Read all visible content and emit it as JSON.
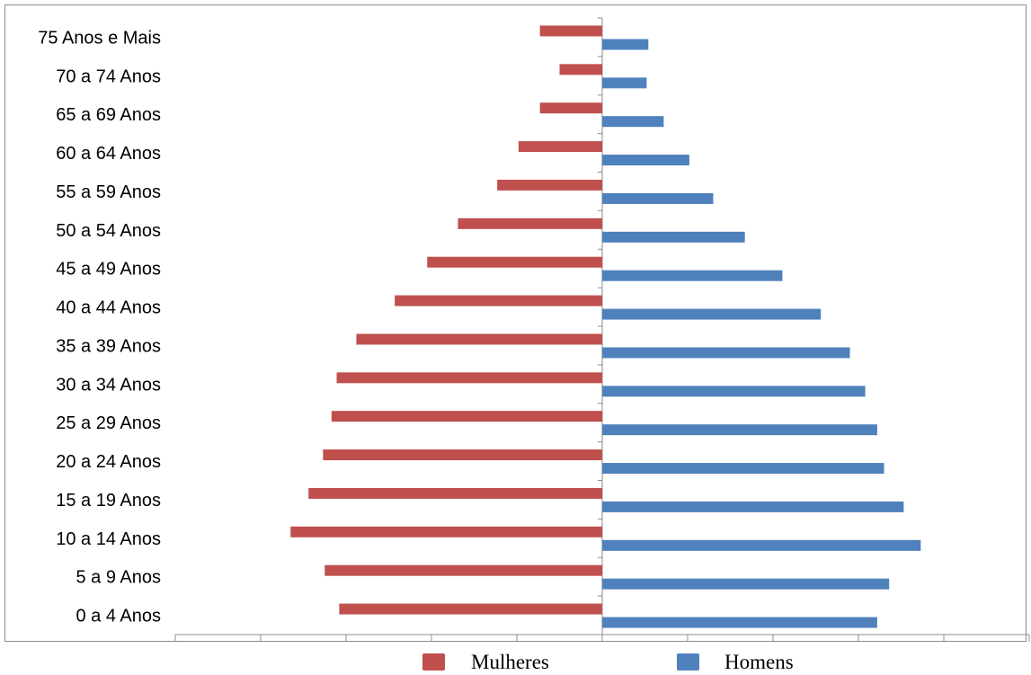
{
  "chart_data": {
    "type": "bar",
    "orientation": "horizontal",
    "categories": [
      "0 a 4 Anos",
      "5 a 9 Anos",
      "10 a 14 Anos",
      "15 a 19 Anos",
      "20 a 24 Anos",
      "25 a 29 Anos",
      "30 a 34 Anos",
      "35 a 39 Anos",
      "40 a 44 Anos",
      "45 a 49 Anos",
      "50 a 54 Anos",
      "55 a 59 Anos",
      "60 a 64 Anos",
      "65 a 69 Anos",
      "70 a 74 Anos",
      "75 Anos e Mais"
    ],
    "series": [
      {
        "name": "Mulheres",
        "color": "#c0504d",
        "values": [
          -3.08,
          -3.25,
          -3.65,
          -3.44,
          -3.27,
          -3.17,
          -3.11,
          -2.88,
          -2.43,
          -2.05,
          -1.69,
          -1.23,
          -0.98,
          -0.73,
          -0.5,
          -0.73
        ]
      },
      {
        "name": "Homens",
        "color": "#4f81bd",
        "values": [
          3.22,
          3.36,
          3.73,
          3.53,
          3.3,
          3.22,
          3.08,
          2.9,
          2.56,
          2.11,
          1.67,
          1.3,
          1.02,
          0.72,
          0.52,
          0.54
        ]
      }
    ],
    "xlim": [
      -5,
      5
    ],
    "x_tick_step": 1,
    "x_tick_labels": false,
    "grid": false,
    "legend": "bottom",
    "title": "",
    "xlabel": "",
    "ylabel": ""
  }
}
